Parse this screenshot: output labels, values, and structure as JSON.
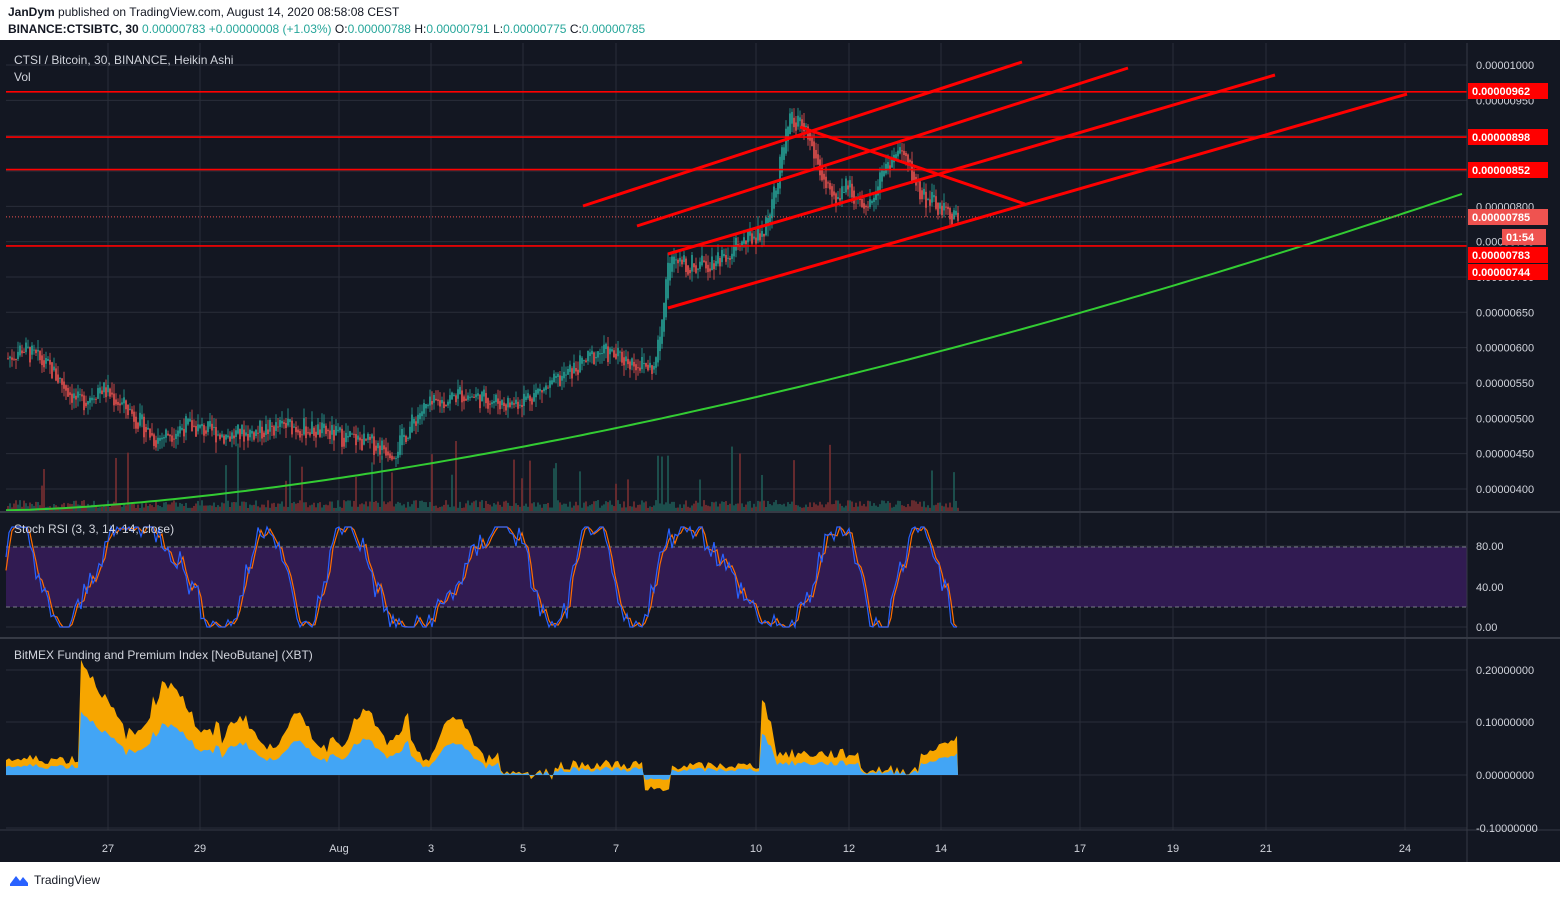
{
  "header": {
    "author": "JanDym",
    "published_text": "published on TradingView.com, August 14, 2020 08:58:08 CEST",
    "symbol_line": "BINANCE:CTSIBTC, 30",
    "price": "0.00000783",
    "change": "+0.00000008 (+1.03%)",
    "o_label": "O:",
    "o_value": "0.00000788",
    "h_label": "H:",
    "h_value": "0.00000791",
    "l_label": "L:",
    "l_value": "0.00000775",
    "c_label": "C:",
    "c_value": "0.00000785"
  },
  "main_pane": {
    "title": "CTSI / Bitcoin, 30, BINANCE, Heikin Ashi",
    "vol_label": "Vol",
    "y_ticks": [
      "0.00001000",
      "0.00000950",
      "0.00000900",
      "0.00000850",
      "0.00000800",
      "0.00000750",
      "0.00000700",
      "0.00000650",
      "0.00000600",
      "0.00000550",
      "0.00000500",
      "0.00000450",
      "0.00000400"
    ],
    "price_tags": [
      {
        "text": "0.00000962",
        "color": "#ff0000"
      },
      {
        "text": "0.00000898",
        "color": "#ff0000"
      },
      {
        "text": "0.00000852",
        "color": "#ff0000"
      },
      {
        "text": "0.00000785",
        "color": "#ef5350"
      },
      {
        "text": "01:54",
        "color": "#ef5350"
      },
      {
        "text": "0.00000783",
        "color": "#ff0000"
      },
      {
        "text": "0.00000744",
        "color": "#ff0000"
      }
    ]
  },
  "stoch_pane": {
    "title": "Stoch RSI (3, 3, 14, 14, close)",
    "y_ticks": [
      "80.00",
      "40.00",
      "0.00"
    ]
  },
  "funding_pane": {
    "title": "BitMEX Funding and Premium Index [NeoButane] (XBT)",
    "y_ticks": [
      "0.20000000",
      "0.10000000",
      "0.00000000",
      "-0.10000000"
    ]
  },
  "x_axis": {
    "labels": [
      "27",
      "29",
      "Aug",
      "3",
      "5",
      "7",
      "10",
      "12",
      "14",
      "17",
      "19",
      "21",
      "24"
    ]
  },
  "footer": {
    "brand": "TradingView"
  },
  "colors": {
    "background": "#131722",
    "up": "#26a69a",
    "down": "#ef5350",
    "drawing": "#ff0000",
    "ma": "#33cc33",
    "stoch_band": "#311b52",
    "stoch_k": "#2962ff",
    "stoch_d": "#ff6d00",
    "funding": "#f7a600",
    "premium": "#42a5f5"
  },
  "chart_data": [
    {
      "type": "candlestick",
      "title": "CTSI / Bitcoin, 30, BINANCE, Heikin Ashi",
      "x_labels": [
        "27",
        "29",
        "Aug",
        "3",
        "5",
        "7",
        "10",
        "12",
        "14",
        "17",
        "19",
        "21",
        "24"
      ],
      "ylim": [
        3.6e-06,
        1.02e-05
      ],
      "approx_close_path": [
        {
          "x": "Jul 25",
          "y": 5.85e-06
        },
        {
          "x": "Jul 26",
          "y": 5.6e-06
        },
        {
          "x": "Jul 27",
          "y": 5.2e-06
        },
        {
          "x": "Jul 28",
          "y": 4.7e-06
        },
        {
          "x": "Jul 29",
          "y": 4.9e-06
        },
        {
          "x": "Jul 30",
          "y": 4.8e-06
        },
        {
          "x": "Jul 31",
          "y": 4.9e-06
        },
        {
          "x": "Aug 1",
          "y": 4.7e-06
        },
        {
          "x": "Aug 2",
          "y": 4.5e-06
        },
        {
          "x": "Aug 3",
          "y": 5.3e-06
        },
        {
          "x": "Aug 4",
          "y": 5.3e-06
        },
        {
          "x": "Aug 5",
          "y": 5.3e-06
        },
        {
          "x": "Aug 6",
          "y": 5.9e-06
        },
        {
          "x": "Aug 7",
          "y": 5.8e-06
        },
        {
          "x": "Aug 8",
          "y": 7.2e-06
        },
        {
          "x": "Aug 9",
          "y": 7.2e-06
        },
        {
          "x": "Aug 10",
          "y": 7.6e-06
        },
        {
          "x": "Aug 11",
          "y": 9e-06
        },
        {
          "x": "Aug 12",
          "y": 8e-06
        },
        {
          "x": "Aug 13",
          "y": 8.6e-06
        },
        {
          "x": "Aug 14",
          "y": 7.85e-06
        }
      ],
      "horizontal_levels": [
        9.62e-06,
        8.98e-06,
        8.52e-06,
        7.85e-06,
        7.44e-06
      ],
      "moving_average": "rising green curve from ~0.0000037 (Jul 25) to ~0.0000082 (Aug 25)"
    },
    {
      "type": "line",
      "title": "Stoch RSI (3, 3, 14, 14, close)",
      "ylim": [
        0,
        100
      ],
      "band": [
        20,
        80
      ],
      "series": [
        {
          "values_range": [
            0,
            100
          ]
        },
        {
          "values_range": [
            0,
            100
          ]
        }
      ]
    },
    {
      "type": "area",
      "title": "BitMEX Funding and Premium Index [NeoButane] (XBT)",
      "ylim": [
        -0.1,
        0.2
      ],
      "series": [
        {
          "peak_x": "Jul 26",
          "peak_value": 0.22
        },
        {
          "peak_x": "Jul 26",
          "peak_value": 0.15
        }
      ]
    }
  ]
}
